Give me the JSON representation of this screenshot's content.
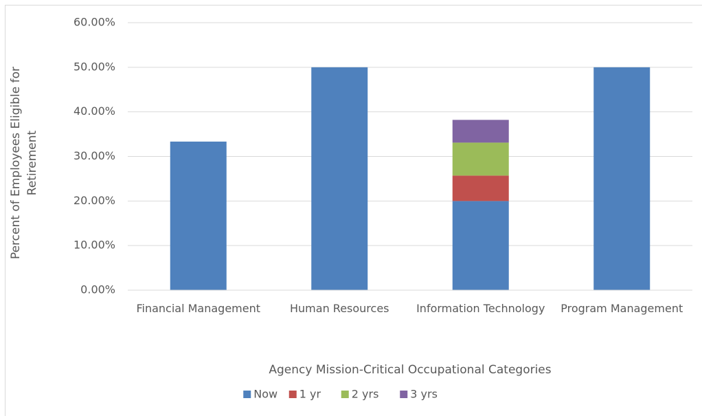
{
  "chart_data": {
    "type": "stacked_bar",
    "ylabel": "Percent of Employees Eligible for Retirement",
    "xlabel": "Agency Mission-Critical Occupational Categories",
    "categories": [
      "Financial Management",
      "Human Resources",
      "Information Technology",
      "Program Management"
    ],
    "series": [
      {
        "name": "Now",
        "color": "#4f81bd",
        "values": [
          33.33,
          50,
          20,
          50
        ]
      },
      {
        "name": "1 yr",
        "color": "#c0504d",
        "values": [
          null,
          null,
          5.7,
          null
        ]
      },
      {
        "name": "2 yrs",
        "color": "#9bbb59",
        "values": [
          null,
          null,
          7.4,
          null
        ]
      },
      {
        "name": "3 yrs",
        "color": "#8064a2",
        "values": [
          null,
          null,
          5.1,
          null
        ]
      }
    ],
    "ylim": [
      0,
      60
    ],
    "yticks": [
      {
        "value": 0,
        "label": "0.00%"
      },
      {
        "value": 10,
        "label": "10.00%"
      },
      {
        "value": 20,
        "label": "20.00%"
      },
      {
        "value": 30,
        "label": "30.00%"
      },
      {
        "value": 40,
        "label": "40.00%"
      },
      {
        "value": 50,
        "label": "50.00%"
      },
      {
        "value": 60,
        "label": "60.00%"
      }
    ],
    "grid": true,
    "legend": "bottom"
  }
}
